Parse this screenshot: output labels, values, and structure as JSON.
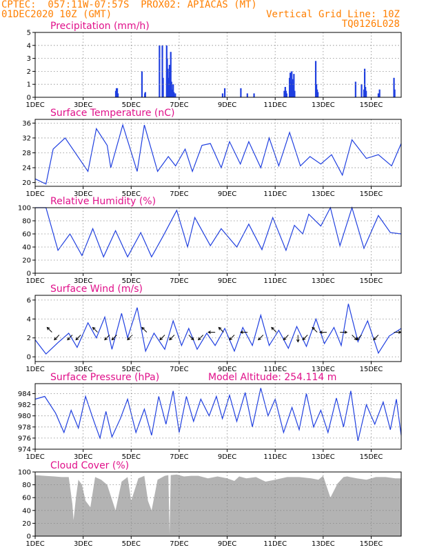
{
  "header": {
    "left_line1": "CPTEC:  057:11W-07:57S  PROX02: APIACAS (MT)",
    "left_line2": "01DEC2020 10Z (GMT)",
    "right_line2": "Vertical Grid Line: 10Z",
    "right_line3": "TQ0126L028"
  },
  "colors": {
    "series": "#1f3fe0",
    "title": "#e0108a",
    "header": "#ff7f00",
    "cloud": "#b3b3b3"
  },
  "x_ticks": [
    "1DEC",
    "3DEC",
    "5DEC",
    "7DEC",
    "9DEC",
    "11DEC",
    "13DEC",
    "15DEC"
  ],
  "chart_data": [
    {
      "type": "bar",
      "title": "Precipitation (mm/h)",
      "ylim": [
        0,
        5
      ],
      "yticks": [
        "0",
        "1",
        "2",
        "3",
        "4",
        "5"
      ],
      "x_range_days": [
        0,
        15.25
      ],
      "series": [
        {
          "x_days": [
            3.36,
            3.39,
            3.42,
            3.45,
            4.45,
            4.57,
            4.59,
            5.18,
            5.3,
            5.33,
            5.48,
            5.5,
            5.53,
            5.56,
            5.6,
            5.62,
            5.65,
            5.68,
            5.72,
            5.75,
            5.78,
            5.84,
            7.81,
            7.9,
            8.57,
            8.84,
            9.12,
            10.38,
            10.42,
            10.45,
            10.48,
            10.6,
            10.63,
            10.66,
            10.69,
            10.72,
            10.75,
            10.78,
            10.81,
            11.69,
            11.72,
            11.75,
            11.78,
            13.35,
            13.6,
            13.7,
            13.73,
            13.76,
            13.79,
            14.3,
            14.35,
            14.95,
            14.98
          ],
          "values": [
            0.5,
            0.7,
            0.7,
            0.3,
            2.0,
            0.3,
            0.4,
            4.0,
            4.0,
            1.5,
            4.0,
            3.0,
            2.2,
            1.5,
            2.5,
            1.0,
            3.5,
            1.2,
            0.6,
            1.0,
            0.4,
            0.3,
            0.3,
            0.7,
            0.7,
            0.3,
            0.3,
            0.5,
            0.8,
            0.5,
            0.3,
            1.5,
            1.9,
            1.2,
            2.0,
            1.4,
            1.1,
            1.8,
            0.5,
            2.8,
            1.0,
            0.6,
            0.4,
            1.2,
            1.0,
            0.6,
            2.2,
            0.8,
            0.5,
            0.3,
            0.6,
            1.5,
            0.6
          ]
        }
      ]
    },
    {
      "type": "line",
      "title": "Surface Temperature (nC)",
      "ylim": [
        19,
        37
      ],
      "yticks": [
        "20",
        "24",
        "28",
        "32",
        "36"
      ],
      "x_range_days": [
        0,
        15.25
      ],
      "series": [
        {
          "x_days": [
            0,
            0.45,
            0.75,
            1.25,
            2.2,
            2.55,
            3.0,
            3.15,
            3.65,
            4.25,
            4.55,
            5.1,
            5.55,
            5.85,
            6.25,
            6.55,
            6.95,
            7.3,
            7.75,
            8.1,
            8.55,
            8.9,
            9.4,
            9.75,
            10.15,
            10.6,
            11.05,
            11.45,
            11.9,
            12.35,
            12.8,
            13.2,
            13.8,
            14.3,
            14.85,
            15.25
          ],
          "values": [
            21,
            19.6,
            29,
            32,
            23,
            34.5,
            30,
            24,
            35.5,
            23,
            35.5,
            23,
            27,
            24.5,
            29,
            23,
            30,
            30.5,
            24,
            31,
            25,
            31,
            24,
            32,
            24.5,
            33.5,
            24.5,
            27,
            25,
            27.5,
            22,
            31.5,
            26.5,
            27.5,
            24.5,
            30.5
          ]
        }
      ]
    },
    {
      "type": "line",
      "title": "Relative Humidity (%)",
      "ylim": [
        0,
        100
      ],
      "yticks": [
        "0",
        "20",
        "40",
        "60",
        "80",
        "100"
      ],
      "x_range_days": [
        0,
        15.25
      ],
      "series": [
        {
          "x_days": [
            0,
            0.45,
            0.95,
            1.45,
            1.95,
            2.4,
            2.85,
            3.35,
            3.85,
            4.4,
            4.85,
            5.35,
            5.9,
            6.35,
            6.65,
            7.3,
            7.75,
            8.4,
            8.9,
            9.45,
            9.9,
            10.45,
            10.8,
            11.15,
            11.4,
            11.9,
            12.3,
            12.7,
            13.2,
            13.7,
            14.3,
            14.8,
            15.25
          ],
          "values": [
            100,
            100,
            35,
            60,
            27,
            68,
            25,
            65,
            25,
            62,
            25,
            58,
            96,
            40,
            85,
            42,
            68,
            40,
            75,
            36,
            85,
            35,
            73,
            60,
            90,
            72,
            100,
            42,
            100,
            38,
            88,
            62,
            60
          ]
        }
      ]
    },
    {
      "type": "line",
      "title": "Surface Wind (m/s)",
      "ylim": [
        -0.5,
        6.5
      ],
      "yticks": [
        "0",
        "2",
        "4",
        "6"
      ],
      "x_range_days": [
        0,
        15.25
      ],
      "series": [
        {
          "x_days": [
            0,
            0.45,
            0.95,
            1.4,
            1.75,
            2.2,
            2.55,
            2.9,
            3.2,
            3.6,
            3.85,
            4.25,
            4.6,
            4.95,
            5.4,
            5.75,
            6.1,
            6.4,
            6.75,
            7.15,
            7.5,
            7.9,
            8.3,
            8.65,
            9.05,
            9.4,
            9.75,
            10.15,
            10.55,
            10.9,
            11.3,
            11.7,
            12.05,
            12.45,
            12.75,
            13.05,
            13.45,
            13.85,
            14.3,
            14.75,
            15.25
          ],
          "values": [
            1.8,
            0.3,
            1.5,
            2.5,
            1,
            3.6,
            2,
            4.2,
            0.8,
            4.6,
            2,
            5.2,
            0.6,
            2.5,
            0.8,
            3.8,
            1.2,
            3,
            0.8,
            2.5,
            1.2,
            3,
            0.6,
            3.1,
            1.2,
            4.4,
            1.2,
            2.8,
            0.9,
            3.2,
            1.1,
            4,
            1.4,
            3.1,
            1.2,
            5.6,
            1.6,
            3.8,
            0.4,
            2.2,
            3
          ]
        }
      ],
      "wind_arrows": [
        {
          "x_day": 0.7,
          "dir": "nw"
        },
        {
          "x_day": 1.0,
          "dir": "sw"
        },
        {
          "x_day": 1.55,
          "dir": "sw"
        },
        {
          "x_day": 1.9,
          "dir": "sw"
        },
        {
          "x_day": 2.6,
          "dir": "nw"
        },
        {
          "x_day": 3.1,
          "dir": "sw"
        },
        {
          "x_day": 3.4,
          "dir": "sw"
        },
        {
          "x_day": 4.05,
          "dir": "sw"
        },
        {
          "x_day": 4.65,
          "dir": "nw"
        },
        {
          "x_day": 5.4,
          "dir": "sw"
        },
        {
          "x_day": 5.8,
          "dir": "sw"
        },
        {
          "x_day": 6.4,
          "dir": "se"
        },
        {
          "x_day": 7.0,
          "dir": "sw"
        },
        {
          "x_day": 7.5,
          "dir": "w"
        },
        {
          "x_day": 7.85,
          "dir": "nw"
        },
        {
          "x_day": 8.3,
          "dir": "sw"
        },
        {
          "x_day": 8.85,
          "dir": "w"
        },
        {
          "x_day": 9.5,
          "dir": "sw"
        },
        {
          "x_day": 10.05,
          "dir": "nw"
        },
        {
          "x_day": 10.55,
          "dir": "sw"
        },
        {
          "x_day": 10.95,
          "dir": "s"
        },
        {
          "x_day": 11.35,
          "dir": "sw"
        },
        {
          "x_day": 11.75,
          "dir": "nw"
        },
        {
          "x_day": 12.15,
          "dir": "w"
        },
        {
          "x_day": 12.7,
          "dir": "e"
        },
        {
          "x_day": 13.2,
          "dir": "se"
        },
        {
          "x_day": 13.6,
          "dir": "sw"
        },
        {
          "x_day": 14.3,
          "dir": "sw"
        },
        {
          "x_day": 14.95,
          "dir": "e"
        }
      ]
    },
    {
      "type": "line",
      "title": "Surface Pressure (hPa)",
      "annotation": "Model Altitude: 254.114 m",
      "ylim": [
        974,
        985.8
      ],
      "yticks": [
        "974",
        "976",
        "978",
        "980",
        "982",
        "984"
      ],
      "x_range_days": [
        0,
        15.25
      ],
      "series": [
        {
          "x_days": [
            0,
            0.4,
            0.85,
            1.2,
            1.5,
            1.8,
            2.1,
            2.45,
            2.7,
            2.95,
            3.2,
            3.55,
            3.85,
            4.2,
            4.55,
            4.85,
            5.15,
            5.45,
            5.75,
            6.0,
            6.3,
            6.6,
            6.9,
            7.25,
            7.55,
            7.8,
            8.1,
            8.4,
            8.75,
            9.05,
            9.4,
            9.7,
            10.0,
            10.35,
            10.7,
            11.0,
            11.3,
            11.6,
            11.9,
            12.2,
            12.55,
            12.85,
            13.15,
            13.45,
            13.8,
            14.15,
            14.5,
            14.8,
            15.05,
            15.25
          ],
          "values": [
            983,
            983.5,
            980.5,
            977,
            981,
            977.8,
            983.5,
            979,
            976,
            980.8,
            976.2,
            979.5,
            983,
            977,
            981.2,
            976.5,
            983.5,
            978.5,
            984.5,
            977,
            983.5,
            979,
            983,
            980,
            983.5,
            979.5,
            983.7,
            979,
            984.2,
            978,
            985,
            980,
            983,
            977,
            981.5,
            977.5,
            984,
            978,
            981,
            977,
            983.2,
            978,
            984.5,
            975.5,
            982,
            978.5,
            982.5,
            977.5,
            983,
            976.5
          ]
        }
      ]
    },
    {
      "type": "area",
      "title": "Cloud Cover (%)",
      "ylim": [
        0,
        100
      ],
      "yticks": [
        "0",
        "20",
        "40",
        "60",
        "80",
        "100"
      ],
      "x_range_days": [
        0,
        15.25
      ],
      "series": [
        {
          "x_days": [
            0,
            0.4,
            0.8,
            1.1,
            1.4,
            1.55,
            1.6,
            1.7,
            1.8,
            1.95,
            2.1,
            2.3,
            2.5,
            2.75,
            3.0,
            3.35,
            3.6,
            3.85,
            4.0,
            4.3,
            4.55,
            4.7,
            4.85,
            5.1,
            5.4,
            5.55,
            5.6,
            5.65,
            5.9,
            6.2,
            6.5,
            6.8,
            7.2,
            7.6,
            8.0,
            8.3,
            8.5,
            8.8,
            9.2,
            9.6,
            10.0,
            10.5,
            11.0,
            11.5,
            11.8,
            12.0,
            12.3,
            12.6,
            12.85,
            13.0,
            13.4,
            13.8,
            14.2,
            14.6,
            15.0,
            15.25
          ],
          "values": [
            95,
            94,
            93,
            92,
            92,
            50,
            25,
            60,
            88,
            80,
            55,
            45,
            92,
            88,
            80,
            40,
            85,
            92,
            55,
            90,
            94,
            55,
            40,
            88,
            94,
            95,
            3,
            95,
            96,
            93,
            94,
            94,
            90,
            93,
            90,
            86,
            93,
            90,
            92,
            85,
            88,
            92,
            92,
            90,
            88,
            94,
            60,
            82,
            92,
            93,
            90,
            88,
            92,
            92,
            90,
            90
          ]
        }
      ]
    }
  ]
}
